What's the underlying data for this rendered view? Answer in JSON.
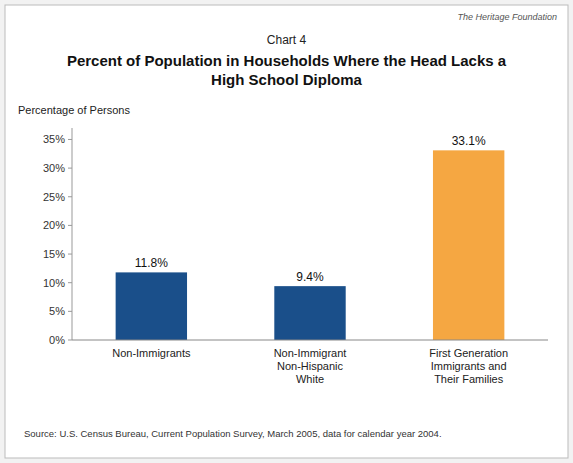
{
  "chart_data": {
    "type": "bar",
    "title": "Percent of Population in Households Where the Head Lacks a\nHigh School Diploma",
    "annotations": [
      "Chart 4",
      "The Heritage Foundation",
      "Source: U.S. Census Bureau, Current Population Survey, March 2005, data for calendar year 2004."
    ],
    "y_label": "Percentage of Persons",
    "categories": [
      "Non-Immigrants",
      "Non-Immigrant\nNon-Hispanic\nWhite",
      "First Generation\nImmigrants and\nTheir Families"
    ],
    "values": [
      11.8,
      9.4,
      33.1
    ],
    "value_labels": [
      "11.8%",
      "9.4%",
      "33.1%"
    ],
    "data_labels": true,
    "colors": [
      "#1a4f8a",
      "#1a4f8a",
      "#f5a742"
    ],
    "ylim": [
      0,
      37
    ],
    "yticks": [
      {
        "value": 0,
        "label": "0%"
      },
      {
        "value": 5,
        "label": "5%"
      },
      {
        "value": 10,
        "label": "10%"
      },
      {
        "value": 15,
        "label": "15%"
      },
      {
        "value": 20,
        "label": "20%"
      },
      {
        "value": 25,
        "label": "25%"
      },
      {
        "value": 30,
        "label": "30%"
      },
      {
        "value": 35,
        "label": "35%"
      }
    ],
    "grid": false
  }
}
